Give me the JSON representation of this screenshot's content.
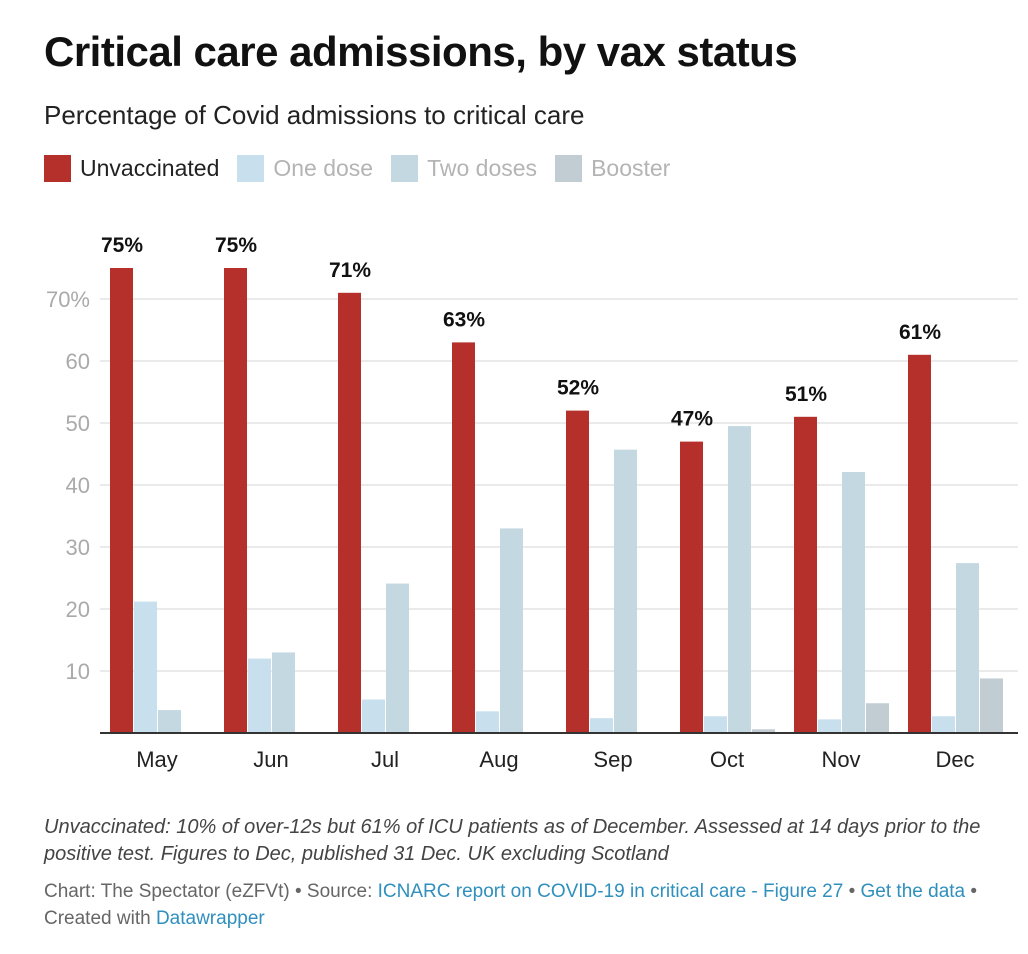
{
  "title": "Critical care admissions, by vax status",
  "subtitle": "Percentage of Covid admissions to critical care",
  "colors": {
    "unvaccinated": "#b5302a",
    "one_dose": "#c8e0ee",
    "two_doses": "#c4d8e2",
    "booster": "#c1cdd3"
  },
  "legend": [
    {
      "label": "Unvaccinated",
      "color": "#b5302a",
      "muted": false
    },
    {
      "label": "One dose",
      "color": "#c8e0ee",
      "muted": true
    },
    {
      "label": "Two doses",
      "color": "#c4d8e2",
      "muted": true
    },
    {
      "label": "Booster",
      "color": "#c1cdd3",
      "muted": true
    }
  ],
  "chart_data": {
    "type": "bar",
    "title": "Critical care admissions, by vax status",
    "subtitle": "Percentage of Covid admissions to critical care",
    "xlabel": "",
    "ylabel": "",
    "ylim": [
      0,
      75
    ],
    "yticks": [
      10,
      20,
      30,
      40,
      50,
      60,
      70
    ],
    "ytick_labels": [
      "10",
      "20",
      "30",
      "40",
      "50",
      "60",
      "70%"
    ],
    "grid": true,
    "legend_position": "top-left",
    "categories": [
      "May",
      "Jun",
      "Jul",
      "Aug",
      "Sep",
      "Oct",
      "Nov",
      "Dec"
    ],
    "series": [
      {
        "name": "Unvaccinated",
        "color": "#b5302a",
        "values": [
          75,
          75,
          71,
          63,
          52,
          47,
          51,
          61
        ],
        "data_labels": [
          "75%",
          "75%",
          "71%",
          "63%",
          "52%",
          "47%",
          "51%",
          "61%"
        ]
      },
      {
        "name": "One dose",
        "color": "#c8e0ee",
        "values": [
          21.2,
          12,
          5.4,
          3.5,
          2.4,
          2.7,
          2.2,
          2.7
        ]
      },
      {
        "name": "Two doses",
        "color": "#c4d8e2",
        "values": [
          3.7,
          13,
          24.1,
          33,
          45.7,
          49.5,
          42.1,
          27.4
        ]
      },
      {
        "name": "Booster",
        "color": "#c1cdd3",
        "values": [
          0,
          0,
          0,
          0,
          0,
          0.6,
          4.8,
          8.8
        ]
      }
    ]
  },
  "note": "Unvaccinated: 10% of over-12s but 61% of ICU patients as of December. Assessed at 14 days prior to the positive test. Figures to Dec, published 31 Dec. UK excluding Scotland",
  "credits": {
    "chart_prefix": "Chart: The Spectator (eZFVt) • Source: ",
    "source_link": "ICNARC report on COVID-19 in critical care - Figure 27",
    "separator": " • ",
    "get_data": "Get the data",
    "created_prefix": " • Created with ",
    "datawrapper": "Datawrapper"
  }
}
